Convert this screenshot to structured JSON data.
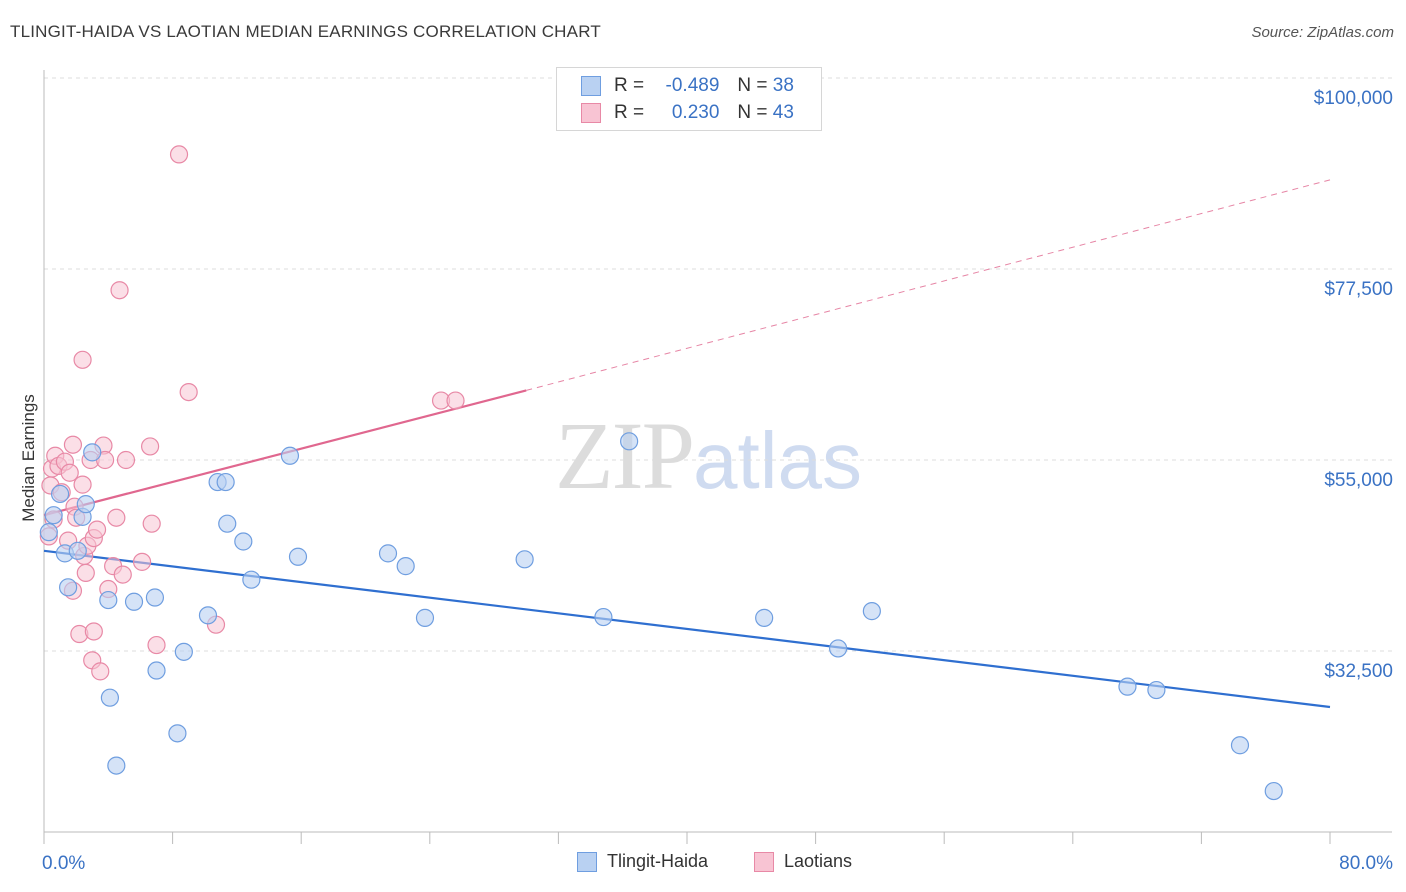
{
  "header": {
    "title": "TLINGIT-HAIDA VS LAOTIAN MEDIAN EARNINGS CORRELATION CHART",
    "source": "Source: ZipAtlas.com"
  },
  "watermark": {
    "zip": "ZIP",
    "atlas": "atlas"
  },
  "legend": {
    "rows": [
      {
        "r_label": "R =",
        "r_value": "-0.489",
        "n_label": "N =",
        "n_value": "38"
      },
      {
        "r_label": "R =",
        "r_value": "0.230",
        "n_label": "N =",
        "n_value": "43"
      }
    ]
  },
  "bottom_legend": [
    "Tlingit-Haida",
    "Laotians"
  ],
  "colors": {
    "blue_fill": "#b9d1f2",
    "blue_stroke": "#6f9ee0",
    "blue_line": "#2f6fd0",
    "pink_fill": "#f8c4d3",
    "pink_stroke": "#e889a6",
    "pink_line": "#e0678f",
    "axis_label": "#3a72c4",
    "grid": "#dddddd"
  },
  "chart_data": {
    "type": "scatter",
    "title": "TLINGIT-HAIDA VS LAOTIAN MEDIAN EARNINGS CORRELATION CHART",
    "xlabel": "",
    "ylabel": "Median Earnings",
    "xlim": [
      0,
      80
    ],
    "ylim": [
      12000,
      104000
    ],
    "x_tick_labels": [
      "0.0%",
      "80.0%"
    ],
    "y_ticks": [
      32500,
      55000,
      77500,
      100000
    ],
    "y_tick_labels": [
      "$32,500",
      "$55,000",
      "$77,500",
      "$100,000"
    ],
    "series": [
      {
        "name": "Tlingit-Haida",
        "r": -0.489,
        "n": 38,
        "points": [
          [
            0.3,
            46500
          ],
          [
            0.6,
            48500
          ],
          [
            1.0,
            51000
          ],
          [
            1.3,
            44000
          ],
          [
            1.5,
            40000
          ],
          [
            2.1,
            44300
          ],
          [
            2.4,
            48300
          ],
          [
            2.6,
            49800
          ],
          [
            3.0,
            55900
          ],
          [
            4.0,
            38500
          ],
          [
            4.1,
            27000
          ],
          [
            4.5,
            19000
          ],
          [
            5.6,
            38300
          ],
          [
            6.9,
            38800
          ],
          [
            7.0,
            30200
          ],
          [
            8.3,
            22800
          ],
          [
            8.7,
            32400
          ],
          [
            10.2,
            36700
          ],
          [
            10.8,
            52400
          ],
          [
            11.3,
            52400
          ],
          [
            11.4,
            47500
          ],
          [
            12.4,
            45400
          ],
          [
            12.9,
            40900
          ],
          [
            15.3,
            55500
          ],
          [
            15.8,
            43600
          ],
          [
            21.4,
            44000
          ],
          [
            22.5,
            42500
          ],
          [
            23.7,
            36400
          ],
          [
            29.9,
            43300
          ],
          [
            34.8,
            36500
          ],
          [
            36.4,
            57200
          ],
          [
            44.8,
            36400
          ],
          [
            49.4,
            32800
          ],
          [
            51.5,
            37200
          ],
          [
            67.4,
            28300
          ],
          [
            69.2,
            27900
          ],
          [
            74.4,
            21400
          ],
          [
            76.5,
            16000
          ]
        ],
        "trend": {
          "x": [
            0,
            80
          ],
          "y": [
            44300,
            25900
          ]
        }
      },
      {
        "name": "Laotians",
        "r": 0.23,
        "n": 43,
        "points": [
          [
            0.3,
            46000
          ],
          [
            0.4,
            52000
          ],
          [
            0.5,
            54000
          ],
          [
            0.7,
            55500
          ],
          [
            0.9,
            54300
          ],
          [
            1.1,
            51200
          ],
          [
            1.3,
            54800
          ],
          [
            1.5,
            45500
          ],
          [
            1.6,
            53500
          ],
          [
            1.8,
            56800
          ],
          [
            1.8,
            39600
          ],
          [
            1.9,
            49500
          ],
          [
            2.0,
            48200
          ],
          [
            2.2,
            34500
          ],
          [
            2.4,
            52100
          ],
          [
            2.5,
            43700
          ],
          [
            2.6,
            41700
          ],
          [
            2.7,
            44900
          ],
          [
            2.9,
            55000
          ],
          [
            3.0,
            31400
          ],
          [
            3.1,
            45800
          ],
          [
            3.1,
            34800
          ],
          [
            3.3,
            46800
          ],
          [
            3.5,
            30100
          ],
          [
            3.7,
            56700
          ],
          [
            3.8,
            55000
          ],
          [
            4.0,
            39800
          ],
          [
            4.3,
            42500
          ],
          [
            4.5,
            48200
          ],
          [
            4.7,
            75000
          ],
          [
            4.9,
            41500
          ],
          [
            5.1,
            55000
          ],
          [
            6.1,
            43000
          ],
          [
            6.6,
            56600
          ],
          [
            6.7,
            47500
          ],
          [
            7.0,
            33200
          ],
          [
            8.4,
            91000
          ],
          [
            9.0,
            63000
          ],
          [
            10.7,
            35600
          ],
          [
            2.4,
            66800
          ],
          [
            24.7,
            62000
          ],
          [
            25.6,
            62000
          ],
          [
            0.6,
            48000
          ]
        ],
        "trend": {
          "x": [
            0,
            30
          ],
          "y": [
            48500,
            63200
          ]
        },
        "trend_dashed": {
          "x": [
            30,
            80
          ],
          "y": [
            63200,
            88000
          ]
        }
      }
    ]
  }
}
